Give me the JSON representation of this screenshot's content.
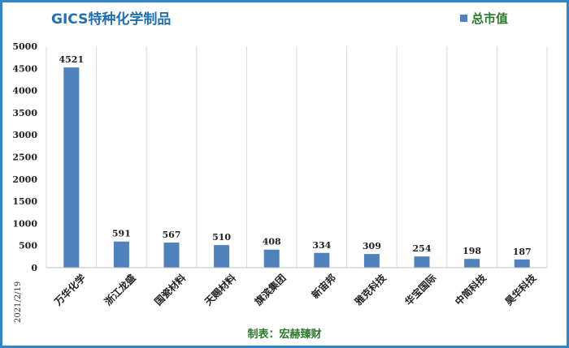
{
  "chart_data": {
    "type": "bar",
    "title": "GICS特种化学制品",
    "legend": {
      "label": "总市值",
      "placement": "top-right"
    },
    "categories": [
      "万华化学",
      "浙江龙盛",
      "国瓷材料",
      "天赐材料",
      "旗滨集团",
      "新宙邦",
      "雅克科技",
      "华宝国际",
      "中简科技",
      "昊华科技"
    ],
    "series": [
      {
        "name": "总市值",
        "values": [
          4521,
          591,
          567,
          510,
          408,
          334,
          309,
          254,
          198,
          187
        ]
      }
    ],
    "ylim": [
      0,
      5000
    ],
    "yticks": [
      "5000",
      "4500",
      "4000",
      "3500",
      "3000",
      "2500",
      "2000",
      "1500",
      "1000",
      "500",
      "0"
    ],
    "grid": "vertical",
    "xlabel": "",
    "ylabel": "",
    "date_note": "2021/2/19",
    "source_note": "制表：宏赫臻财",
    "colors": {
      "bar": "#4f81bd",
      "title": "#1f6fb2",
      "legend_text": "#2b7a2b",
      "border": "#2e86c9",
      "grid": "#d9d9d9"
    }
  }
}
